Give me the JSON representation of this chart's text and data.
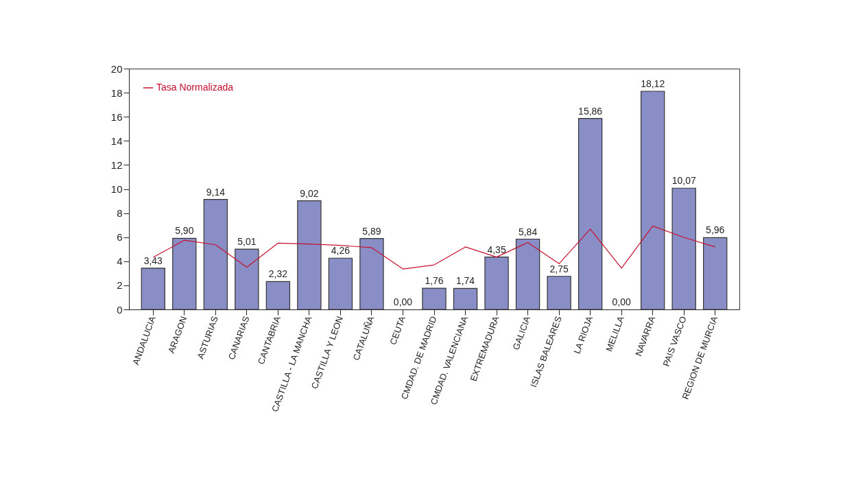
{
  "chart_data": {
    "type": "bar",
    "categories": [
      "ANDALUCIA",
      "ARAGON",
      "ASTURIAS",
      "CANARIAS",
      "CANTABRIA",
      "CASTILLA - LA MANCHA",
      "CASTILLA Y LEON",
      "CATALUÑA",
      "CEUTA",
      "CMDAD. DE MADRID",
      "CMDAD. VALENCIANA",
      "EXTREMADURA",
      "GALICIA",
      "ISLAS BALEARES",
      "LA RIOJA",
      "MELILLA",
      "NAVARRA",
      "PAIS VASCO",
      "REGION DE MURCIA"
    ],
    "series": [
      {
        "color": "#8a8ec6",
        "values": [
          3.43,
          5.9,
          9.14,
          5.01,
          2.32,
          9.02,
          4.26,
          5.89,
          0.0,
          1.76,
          1.74,
          4.35,
          5.84,
          2.75,
          15.86,
          0.0,
          18.12,
          10.07,
          5.96
        ],
        "value_labels": [
          "3,43",
          "5,90",
          "9,14",
          "5,01",
          "2,32",
          "9,02",
          "4,26",
          "5,89",
          "0,00",
          "1,76",
          "1,74",
          "4,35",
          "5,84",
          "2,75",
          "15,86",
          "0,00",
          "18,12",
          "10,07",
          "5,96"
        ]
      },
      {
        "type": "line",
        "name": "Tasa Normalizada",
        "color": "#c8102e",
        "values": [
          4.33,
          5.75,
          5.37,
          3.51,
          5.51,
          5.43,
          5.32,
          5.13,
          3.36,
          3.7,
          5.19,
          4.35,
          5.56,
          3.8,
          6.67,
          3.42,
          6.93,
          5.98,
          5.19
        ]
      }
    ],
    "ylim": [
      0,
      20
    ],
    "yticks": [
      0,
      2,
      4,
      6,
      8,
      10,
      12,
      14,
      16,
      18,
      20
    ],
    "legend": "top left",
    "grid": false
  }
}
